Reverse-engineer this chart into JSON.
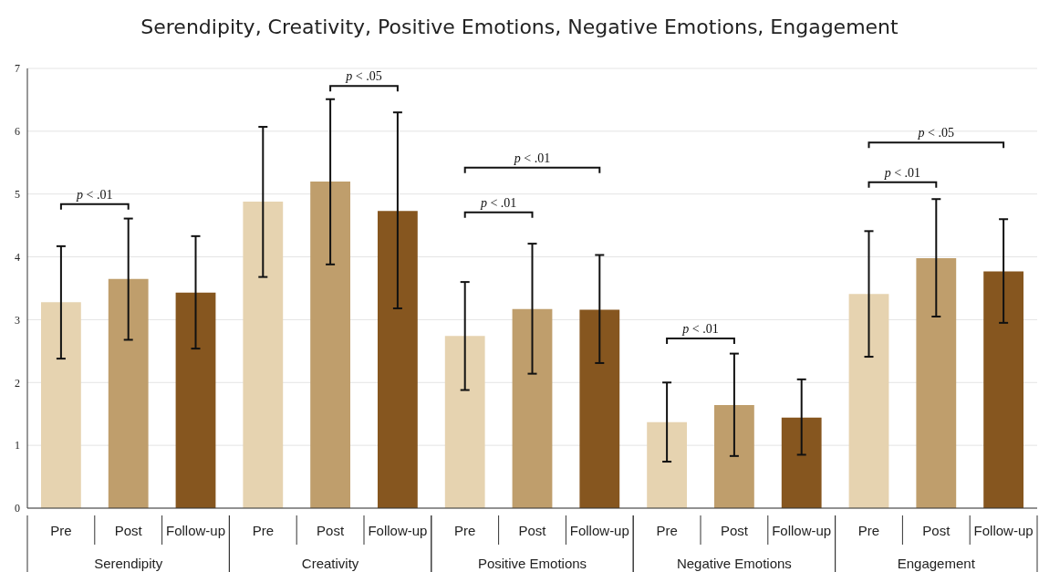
{
  "chart_data": {
    "type": "bar",
    "title": "Serendipity, Creativity, Positive Emotions, Negative Emotions, Engagement",
    "categories": [
      "Serendipity",
      "Creativity",
      "Positive Emotions",
      "Negative Emotions",
      "Engagement"
    ],
    "series": [
      {
        "name": "Pre",
        "color": "#e6d3b0",
        "values": [
          3.28,
          4.88,
          2.74,
          1.37,
          3.41
        ],
        "errors": [
          [
            2.38,
            4.17
          ],
          [
            3.68,
            6.07
          ],
          [
            1.88,
            3.6
          ],
          [
            0.74,
            2.0
          ],
          [
            2.41,
            4.41
          ]
        ]
      },
      {
        "name": "Post",
        "color": "#bf9e6c",
        "values": [
          3.65,
          5.2,
          3.17,
          1.64,
          3.98
        ],
        "errors": [
          [
            2.68,
            4.61
          ],
          [
            3.88,
            6.51
          ],
          [
            2.14,
            4.21
          ],
          [
            0.83,
            2.46
          ],
          [
            3.05,
            4.92
          ]
        ]
      },
      {
        "name": "Follow-up",
        "color": "#86561f",
        "values": [
          3.43,
          4.73,
          3.16,
          1.44,
          3.77
        ],
        "errors": [
          [
            2.54,
            4.33
          ],
          [
            3.18,
            6.3
          ],
          [
            2.31,
            4.03
          ],
          [
            0.85,
            2.05
          ],
          [
            2.95,
            4.6
          ]
        ]
      }
    ],
    "ylim": [
      0,
      7
    ],
    "yticks": [
      0,
      1,
      2,
      3,
      4,
      5,
      6,
      7
    ],
    "grid": "y",
    "legend": false,
    "annotations": [
      "p < .01",
      "p < .05",
      "p < .01",
      "p < .01",
      "p < .01",
      "p < .05",
      "p < .01"
    ]
  }
}
